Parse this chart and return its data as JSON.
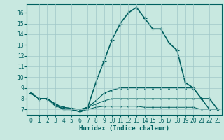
{
  "xlabel": "Humidex (Indice chaleur)",
  "background_color": "#c8e8e0",
  "grid_color": "#a0c8c8",
  "line_color": "#006060",
  "xlim": [
    -0.5,
    23.5
  ],
  "ylim": [
    6.5,
    16.8
  ],
  "xticks": [
    0,
    1,
    2,
    3,
    4,
    5,
    6,
    7,
    8,
    9,
    10,
    11,
    12,
    13,
    14,
    15,
    16,
    17,
    18,
    19,
    20,
    21,
    22,
    23
  ],
  "yticks": [
    7,
    8,
    9,
    10,
    11,
    12,
    13,
    14,
    15,
    16
  ],
  "series": [
    {
      "x": [
        0,
        1,
        2,
        3,
        4,
        5,
        6,
        7,
        8,
        9,
        10,
        11,
        12,
        13,
        14,
        15,
        16,
        17,
        18,
        19,
        20,
        21,
        22,
        23
      ],
      "y": [
        8.5,
        8.0,
        8.0,
        7.5,
        7.0,
        7.0,
        6.8,
        7.2,
        9.5,
        11.5,
        13.5,
        15.0,
        16.0,
        16.5,
        15.5,
        14.5,
        14.5,
        13.2,
        12.5,
        9.5,
        9.0,
        8.0,
        8.0,
        7.0
      ],
      "marker": "+",
      "linewidth": 1.2,
      "markersize": 4
    },
    {
      "x": [
        0,
        1,
        2,
        3,
        4,
        5,
        6,
        7,
        8,
        9,
        10,
        11,
        12,
        13,
        14,
        15,
        16,
        17,
        18,
        19,
        20,
        21,
        22,
        23
      ],
      "y": [
        8.5,
        8.0,
        8.0,
        7.5,
        7.2,
        7.1,
        7.0,
        7.2,
        7.8,
        8.5,
        8.8,
        9.0,
        9.0,
        9.0,
        9.0,
        9.0,
        9.0,
        9.0,
        9.0,
        9.0,
        9.0,
        8.0,
        7.0,
        7.0
      ],
      "marker": ".",
      "linewidth": 0.9,
      "markersize": 3
    },
    {
      "x": [
        0,
        1,
        2,
        3,
        4,
        5,
        6,
        7,
        8,
        9,
        10,
        11,
        12,
        13,
        14,
        15,
        16,
        17,
        18,
        19,
        20,
        21,
        22,
        23
      ],
      "y": [
        8.5,
        8.0,
        8.0,
        7.5,
        7.2,
        7.1,
        7.0,
        7.2,
        7.5,
        7.8,
        8.0,
        8.0,
        8.0,
        8.0,
        8.0,
        8.0,
        8.0,
        8.0,
        8.0,
        8.0,
        8.0,
        8.0,
        7.0,
        7.0
      ],
      "marker": ".",
      "linewidth": 0.7,
      "markersize": 2
    },
    {
      "x": [
        0,
        1,
        2,
        3,
        4,
        5,
        6,
        7,
        8,
        9,
        10,
        11,
        12,
        13,
        14,
        15,
        16,
        17,
        18,
        19,
        20,
        21,
        22,
        23
      ],
      "y": [
        8.5,
        8.0,
        8.0,
        7.3,
        7.1,
        7.0,
        6.8,
        7.0,
        7.2,
        7.3,
        7.3,
        7.3,
        7.3,
        7.3,
        7.2,
        7.2,
        7.2,
        7.2,
        7.2,
        7.2,
        7.2,
        7.0,
        7.0,
        7.0
      ],
      "marker": ".",
      "linewidth": 0.7,
      "markersize": 2
    }
  ]
}
